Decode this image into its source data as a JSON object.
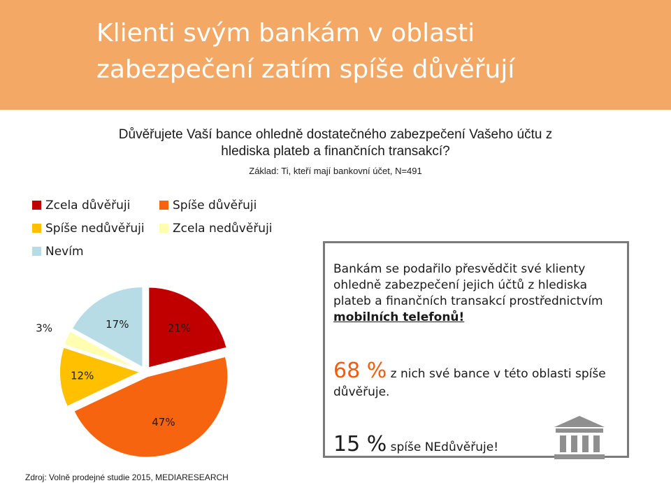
{
  "header": {
    "title_line1": "Klienti svým bankám v oblasti",
    "title_line2": "zabezpečení zatím spíše důvěřují"
  },
  "question": {
    "line1": "Důvěřujete Vaší bance ohledně dostatečného zabezpečení Vašeho účtu z",
    "line2": "hlediska plateb a finančních transakcí?",
    "base": "Základ: Ti, kteří mají bankovní účet, N=491"
  },
  "chart_data": {
    "type": "pie",
    "categories": [
      "Zcela důvěřuji",
      "Spíše důvěřuji",
      "Spíše nedůvěřuji",
      "Zcela nedůvěřuji",
      "Nevím"
    ],
    "values": [
      21,
      47,
      12,
      3,
      17
    ],
    "labels": [
      "21%",
      "47%",
      "12%",
      "3%",
      "17%"
    ],
    "colors": [
      "#c00000",
      "#f7640f",
      "#ffc000",
      "#fffdb0",
      "#b8dce6"
    ],
    "legend_placement": "top"
  },
  "info_box": {
    "text_main": "Bankám se podařilo přesvědčit své klienty ohledně zabezpečení jejich účtů z hlediska plateb a finančních transakcí prostřednictvím",
    "text_emph": "mobilních telefonů!",
    "stat1_value": "68 %",
    "stat1_text": "z nich své bance v této oblasti spíše důvěřuje.",
    "stat2_value": "15 %",
    "stat2_text": "spíše NEdůvěřuje!",
    "icon": "bank-icon"
  },
  "source": "Zdroj: Volně prodejné studie 2015, MEDIARESEARCH"
}
